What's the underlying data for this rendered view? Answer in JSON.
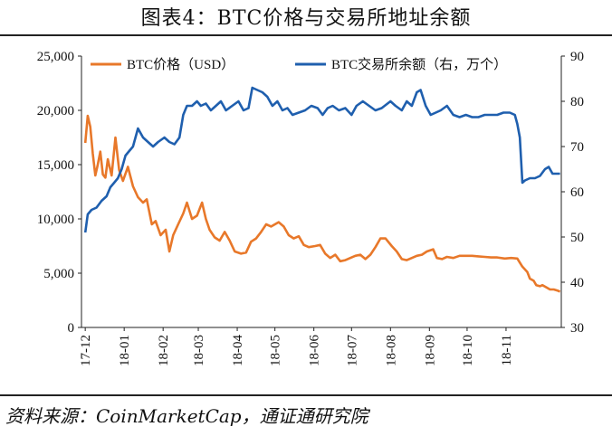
{
  "figure_title": "图表4：BTC价格与交易所地址余额",
  "source_text": "资料来源：CoinMarketCap，通证通研究院",
  "chart_data": {
    "type": "line",
    "left_axis": {
      "ylim": [
        0,
        25000
      ],
      "ticks": [
        "0",
        "5,000",
        "10,000",
        "15,000",
        "20,000",
        "25,000"
      ]
    },
    "right_axis": {
      "ylim": [
        30,
        90
      ],
      "ticks": [
        "30",
        "40",
        "50",
        "60",
        "70",
        "80",
        "90"
      ]
    },
    "x_axis": {
      "ticks": [
        "17-12",
        "18-01",
        "18-02",
        "18-03",
        "18-04",
        "18-05",
        "18-06",
        "18-07",
        "18-08",
        "18-09",
        "18-10",
        "18-11"
      ]
    },
    "legend_position": "top",
    "series": [
      {
        "name": "BTC价格（USD）",
        "axis": "left",
        "color": "#E8782A",
        "values": [
          [
            "2017-12-01",
            17000
          ],
          [
            "2017-12-03",
            19500
          ],
          [
            "2017-12-05",
            18500
          ],
          [
            "2017-12-07",
            16000
          ],
          [
            "2017-12-09",
            14000
          ],
          [
            "2017-12-11",
            15000
          ],
          [
            "2017-12-13",
            16200
          ],
          [
            "2017-12-15",
            14100
          ],
          [
            "2017-12-17",
            13800
          ],
          [
            "2017-12-19",
            15500
          ],
          [
            "2017-12-22",
            14000
          ],
          [
            "2017-12-25",
            17500
          ],
          [
            "2017-12-28",
            14500
          ],
          [
            "2017-12-31",
            13500
          ],
          [
            "2018-01-04",
            14800
          ],
          [
            "2018-01-08",
            13000
          ],
          [
            "2018-01-12",
            12000
          ],
          [
            "2018-01-16",
            11500
          ],
          [
            "2018-01-19",
            11800
          ],
          [
            "2018-01-23",
            9500
          ],
          [
            "2018-01-26",
            9800
          ],
          [
            "2018-01-30",
            8500
          ],
          [
            "2018-02-03",
            9000
          ],
          [
            "2018-02-06",
            7000
          ],
          [
            "2018-02-09",
            8500
          ],
          [
            "2018-02-13",
            9500
          ],
          [
            "2018-02-17",
            10500
          ],
          [
            "2018-02-20",
            11500
          ],
          [
            "2018-02-24",
            10000
          ],
          [
            "2018-02-28",
            10300
          ],
          [
            "2018-03-04",
            11500
          ],
          [
            "2018-03-07",
            10000
          ],
          [
            "2018-03-10",
            9000
          ],
          [
            "2018-03-14",
            8300
          ],
          [
            "2018-03-18",
            8000
          ],
          [
            "2018-03-22",
            8800
          ],
          [
            "2018-03-26",
            8000
          ],
          [
            "2018-03-30",
            7000
          ],
          [
            "2018-04-04",
            6800
          ],
          [
            "2018-04-08",
            6900
          ],
          [
            "2018-04-12",
            7900
          ],
          [
            "2018-04-16",
            8200
          ],
          [
            "2018-04-20",
            8800
          ],
          [
            "2018-04-24",
            9500
          ],
          [
            "2018-04-28",
            9300
          ],
          [
            "2018-05-04",
            9700
          ],
          [
            "2018-05-08",
            9300
          ],
          [
            "2018-05-12",
            8500
          ],
          [
            "2018-05-16",
            8200
          ],
          [
            "2018-05-20",
            8400
          ],
          [
            "2018-05-24",
            7600
          ],
          [
            "2018-05-28",
            7400
          ],
          [
            "2018-06-02",
            7500
          ],
          [
            "2018-06-06",
            7600
          ],
          [
            "2018-06-10",
            6800
          ],
          [
            "2018-06-14",
            6400
          ],
          [
            "2018-06-18",
            6700
          ],
          [
            "2018-06-22",
            6100
          ],
          [
            "2018-06-26",
            6200
          ],
          [
            "2018-06-30",
            6400
          ],
          [
            "2018-07-04",
            6600
          ],
          [
            "2018-07-08",
            6700
          ],
          [
            "2018-07-12",
            6300
          ],
          [
            "2018-07-16",
            6700
          ],
          [
            "2018-07-20",
            7400
          ],
          [
            "2018-07-24",
            8200
          ],
          [
            "2018-07-28",
            8200
          ],
          [
            "2018-08-02",
            7500
          ],
          [
            "2018-08-06",
            7000
          ],
          [
            "2018-08-10",
            6300
          ],
          [
            "2018-08-14",
            6200
          ],
          [
            "2018-08-18",
            6400
          ],
          [
            "2018-08-22",
            6600
          ],
          [
            "2018-08-26",
            6700
          ],
          [
            "2018-08-30",
            7000
          ],
          [
            "2018-09-04",
            7200
          ],
          [
            "2018-09-07",
            6400
          ],
          [
            "2018-09-11",
            6300
          ],
          [
            "2018-09-15",
            6500
          ],
          [
            "2018-09-20",
            6400
          ],
          [
            "2018-09-25",
            6600
          ],
          [
            "2018-09-30",
            6600
          ],
          [
            "2018-10-05",
            6600
          ],
          [
            "2018-10-10",
            6550
          ],
          [
            "2018-10-15",
            6500
          ],
          [
            "2018-10-20",
            6450
          ],
          [
            "2018-10-25",
            6450
          ],
          [
            "2018-10-31",
            6350
          ],
          [
            "2018-11-05",
            6400
          ],
          [
            "2018-11-10",
            6350
          ],
          [
            "2018-11-14",
            5600
          ],
          [
            "2018-11-18",
            5100
          ],
          [
            "2018-11-20",
            4500
          ],
          [
            "2018-11-23",
            4300
          ],
          [
            "2018-11-25",
            3900
          ],
          [
            "2018-11-28",
            3800
          ],
          [
            "2018-11-30",
            3900
          ],
          [
            "2018-12-03",
            3700
          ],
          [
            "2018-12-06",
            3500
          ],
          [
            "2018-12-09",
            3500
          ],
          [
            "2018-12-12",
            3400
          ],
          [
            "2018-12-14",
            3300
          ]
        ]
      },
      {
        "name": "BTC交易所余额（右，万个）",
        "axis": "right",
        "color": "#1F5FAE",
        "values": [
          [
            "2017-12-01",
            51
          ],
          [
            "2017-12-03",
            55
          ],
          [
            "2017-12-06",
            56
          ],
          [
            "2017-12-10",
            56.5
          ],
          [
            "2017-12-14",
            58
          ],
          [
            "2017-12-18",
            59
          ],
          [
            "2017-12-21",
            61
          ],
          [
            "2017-12-24",
            62
          ],
          [
            "2017-12-27",
            63
          ],
          [
            "2017-12-30",
            65
          ],
          [
            "2018-01-02",
            68
          ],
          [
            "2018-01-05",
            69
          ],
          [
            "2018-01-08",
            70
          ],
          [
            "2018-01-12",
            74
          ],
          [
            "2018-01-16",
            72
          ],
          [
            "2018-01-20",
            71
          ],
          [
            "2018-01-24",
            70
          ],
          [
            "2018-01-28",
            71
          ],
          [
            "2018-02-02",
            72
          ],
          [
            "2018-02-06",
            71
          ],
          [
            "2018-02-10",
            70.5
          ],
          [
            "2018-02-14",
            72
          ],
          [
            "2018-02-17",
            77
          ],
          [
            "2018-02-20",
            79
          ],
          [
            "2018-02-24",
            79
          ],
          [
            "2018-02-28",
            80
          ],
          [
            "2018-03-03",
            79
          ],
          [
            "2018-03-07",
            79.5
          ],
          [
            "2018-03-11",
            78
          ],
          [
            "2018-03-15",
            79
          ],
          [
            "2018-03-19",
            80
          ],
          [
            "2018-03-23",
            78
          ],
          [
            "2018-03-28",
            79
          ],
          [
            "2018-04-02",
            80
          ],
          [
            "2018-04-06",
            78
          ],
          [
            "2018-04-10",
            78.5
          ],
          [
            "2018-04-13",
            83
          ],
          [
            "2018-04-17",
            82.5
          ],
          [
            "2018-04-21",
            82
          ],
          [
            "2018-04-25",
            81
          ],
          [
            "2018-04-29",
            79
          ],
          [
            "2018-05-03",
            80
          ],
          [
            "2018-05-07",
            78
          ],
          [
            "2018-05-11",
            78.5
          ],
          [
            "2018-05-15",
            77
          ],
          [
            "2018-05-20",
            77.5
          ],
          [
            "2018-05-25",
            78
          ],
          [
            "2018-05-30",
            79
          ],
          [
            "2018-06-04",
            78.5
          ],
          [
            "2018-06-08",
            77
          ],
          [
            "2018-06-12",
            78.5
          ],
          [
            "2018-06-16",
            79
          ],
          [
            "2018-06-21",
            78
          ],
          [
            "2018-06-26",
            78.5
          ],
          [
            "2018-07-01",
            77
          ],
          [
            "2018-07-05",
            79
          ],
          [
            "2018-07-10",
            80
          ],
          [
            "2018-07-15",
            79
          ],
          [
            "2018-07-20",
            78
          ],
          [
            "2018-07-25",
            78.5
          ],
          [
            "2018-08-01",
            80
          ],
          [
            "2018-08-05",
            79
          ],
          [
            "2018-08-10",
            78
          ],
          [
            "2018-08-14",
            80
          ],
          [
            "2018-08-18",
            79
          ],
          [
            "2018-08-22",
            82
          ],
          [
            "2018-08-25",
            82.5
          ],
          [
            "2018-08-29",
            79
          ],
          [
            "2018-09-02",
            77
          ],
          [
            "2018-09-06",
            77.5
          ],
          [
            "2018-09-10",
            78
          ],
          [
            "2018-09-15",
            79
          ],
          [
            "2018-09-20",
            77
          ],
          [
            "2018-09-25",
            76.5
          ],
          [
            "2018-09-30",
            77
          ],
          [
            "2018-10-05",
            76.5
          ],
          [
            "2018-10-10",
            76.5
          ],
          [
            "2018-10-15",
            77
          ],
          [
            "2018-10-20",
            77
          ],
          [
            "2018-10-25",
            77
          ],
          [
            "2018-10-30",
            77.5
          ],
          [
            "2018-11-04",
            77.5
          ],
          [
            "2018-11-08",
            77
          ],
          [
            "2018-11-10",
            75
          ],
          [
            "2018-11-12",
            72
          ],
          [
            "2018-11-14",
            62
          ],
          [
            "2018-11-16",
            62.5
          ],
          [
            "2018-11-20",
            63
          ],
          [
            "2018-11-24",
            63
          ],
          [
            "2018-11-28",
            63.5
          ],
          [
            "2018-12-02",
            65
          ],
          [
            "2018-12-05",
            65.5
          ],
          [
            "2018-12-08",
            64
          ],
          [
            "2018-12-11",
            64
          ],
          [
            "2018-12-14",
            64
          ]
        ]
      }
    ],
    "x_range": [
      "2017-11-28",
      "2018-12-15"
    ]
  }
}
